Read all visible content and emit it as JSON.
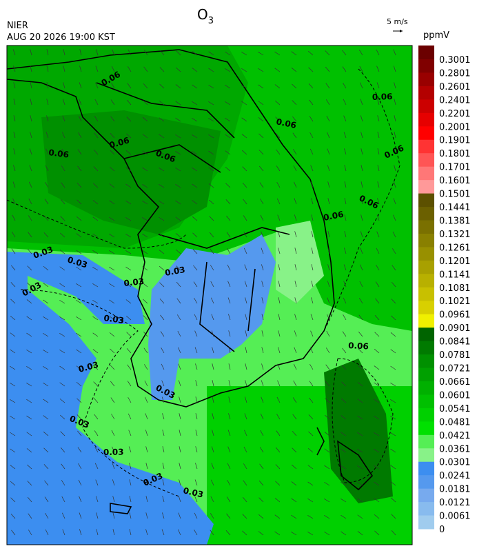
{
  "header": {
    "title": "O",
    "title_subscript": "3",
    "agency": "NIER",
    "datetime": "AUG 20 2026 19:00 KST",
    "vector_scale": "5 m/s"
  },
  "colorbar": {
    "unit": "ppmV",
    "labels": [
      "0.3001",
      "0.2801",
      "0.2601",
      "0.2401",
      "0.2201",
      "0.2001",
      "0.1901",
      "0.1801",
      "0.1701",
      "0.1601",
      "0.1501",
      "0.1441",
      "0.1381",
      "0.1321",
      "0.1261",
      "0.1201",
      "0.1141",
      "0.1081",
      "0.1021",
      "0.0961",
      "0.0901",
      "0.0841",
      "0.0781",
      "0.0721",
      "0.0661",
      "0.0601",
      "0.0541",
      "0.0481",
      "0.0421",
      "0.0361",
      "0.0301",
      "0.0241",
      "0.0181",
      "0.0121",
      "0.0061",
      "0"
    ],
    "colors": [
      "#6b0000",
      "#800000",
      "#990000",
      "#b30000",
      "#cc0000",
      "#e60000",
      "#ff0000",
      "#ff3333",
      "#ff5555",
      "#ff7777",
      "#ff9999",
      "#5c5000",
      "#6b6000",
      "#7a7000",
      "#898000",
      "#989000",
      "#a8a000",
      "#b8b000",
      "#c8c000",
      "#d8d000",
      "#f0f000",
      "#006400",
      "#007a00",
      "#009000",
      "#00a000",
      "#00b000",
      "#00c000",
      "#00d000",
      "#00e000",
      "#55ee55",
      "#88f288",
      "#3c8ef0",
      "#5599ee",
      "#77aaee",
      "#88bbee",
      "#a0ccee"
    ]
  },
  "map": {
    "contour_labels": [
      "0.06",
      "0.06",
      "0.06",
      "0.06",
      "0.06",
      "0.06",
      "0.06",
      "0.06",
      "0.06",
      "0.06",
      "0.03",
      "0.03",
      "0.03",
      "0.03",
      "0.03",
      "0.03",
      "0.03",
      "0.03",
      "0.03",
      "0.03",
      "0.03",
      "0.03"
    ]
  }
}
